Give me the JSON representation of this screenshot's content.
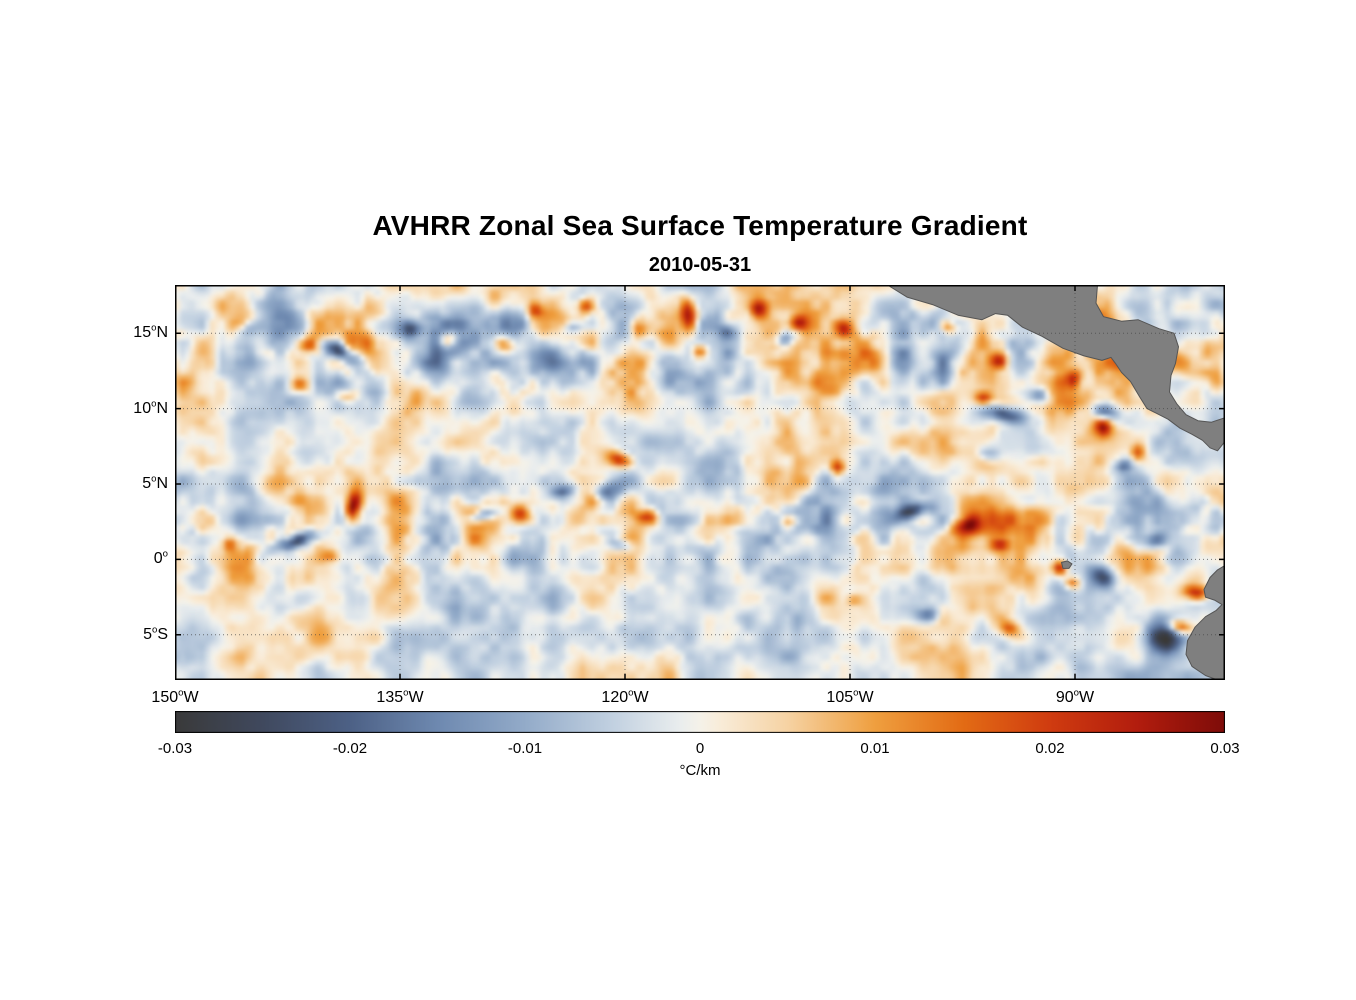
{
  "chart": {
    "title": "AVHRR Zonal Sea Surface Temperature Gradient",
    "subtitle_date": "2010-05-31",
    "colorbar_unit": "°C/km"
  },
  "chart_data": {
    "type": "heatmap",
    "title": "AVHRR Zonal Sea Surface Temperature Gradient",
    "date": "2010-05-31",
    "xlim": [
      -150,
      -80
    ],
    "ylim": [
      -8,
      18.2
    ],
    "lon_ticks": [
      {
        "value": "150",
        "hemi": "W",
        "lon": -150
      },
      {
        "value": "135",
        "hemi": "W",
        "lon": -135
      },
      {
        "value": "120",
        "hemi": "W",
        "lon": -120
      },
      {
        "value": "105",
        "hemi": "W",
        "lon": -105
      },
      {
        "value": "90",
        "hemi": "W",
        "lon": -90
      }
    ],
    "lat_ticks": [
      {
        "value": "15",
        "hemi": "N",
        "lat": 15
      },
      {
        "value": "10",
        "hemi": "N",
        "lat": 10
      },
      {
        "value": "5",
        "hemi": "N",
        "lat": 5
      },
      {
        "value": "0",
        "hemi": "",
        "lat": 0
      },
      {
        "value": "5",
        "hemi": "S",
        "lat": -5
      }
    ],
    "grid": {
      "lons": [
        -135,
        -120,
        -105,
        -90
      ],
      "lats": [
        15,
        10,
        5,
        0,
        -5
      ],
      "style": "dotted"
    },
    "colorbar": {
      "min": -0.03,
      "max": 0.03,
      "tick_labels": [
        "-0.03",
        "-0.02",
        "-0.01",
        "0",
        "0.01",
        "0.02",
        "0.03"
      ],
      "unit": "°C/km",
      "stops": [
        [
          0.0,
          "#3a3a3a"
        ],
        [
          0.083,
          "#40495e"
        ],
        [
          0.167,
          "#4d6186"
        ],
        [
          0.25,
          "#6e89b0"
        ],
        [
          0.333,
          "#93abc9"
        ],
        [
          0.417,
          "#c2d1e1"
        ],
        [
          0.48,
          "#e9edee"
        ],
        [
          0.5,
          "#f5f2e9"
        ],
        [
          0.52,
          "#f9ecd8"
        ],
        [
          0.583,
          "#f6d3a4"
        ],
        [
          0.667,
          "#ef9f3f"
        ],
        [
          0.75,
          "#e36c15"
        ],
        [
          0.833,
          "#d03c10"
        ],
        [
          0.917,
          "#b21d0e"
        ],
        [
          1.0,
          "#7e0c09"
        ]
      ]
    },
    "value_range": [
      -0.033,
      0.033
    ],
    "noise": {
      "seed": 20100531,
      "octaves": [
        {
          "scale": 6.0,
          "amp": 0.004
        },
        {
          "scale": 2.6,
          "amp": 0.007
        },
        {
          "scale": 1.3,
          "amp": 0.0045
        },
        {
          "scale": 0.65,
          "amp": 0.0025
        }
      ],
      "band_boost": [
        {
          "lat": 14.0,
          "sigma": 3.2,
          "gain": 0.9
        },
        {
          "lat": 2.5,
          "sigma": 3.0,
          "gain": 0.7
        }
      ]
    },
    "features_columns": [
      "lon",
      "lat",
      "value",
      "rx_deg",
      "ry_deg",
      "angle_deg"
    ],
    "features": [
      [
        -140.9,
        14.2,
        0.022,
        0.8,
        0.55,
        20
      ],
      [
        -139.0,
        13.8,
        -0.026,
        1.1,
        0.5,
        -25
      ],
      [
        -141.7,
        11.6,
        0.019,
        0.7,
        0.5,
        0
      ],
      [
        -138.6,
        10.8,
        0.016,
        0.8,
        0.45,
        10
      ],
      [
        -145.2,
        15.3,
        -0.013,
        0.7,
        0.5,
        0
      ],
      [
        -134.2,
        15.2,
        -0.022,
        0.7,
        0.6,
        0
      ],
      [
        -131.8,
        14.6,
        0.02,
        0.6,
        0.5,
        0
      ],
      [
        -128.2,
        14.3,
        0.021,
        0.7,
        0.5,
        -20
      ],
      [
        -126.0,
        16.5,
        0.016,
        0.5,
        0.45,
        0
      ],
      [
        -123.5,
        15.3,
        -0.015,
        0.7,
        0.45,
        0
      ],
      [
        -122.6,
        16.8,
        0.018,
        0.5,
        0.45,
        0
      ],
      [
        -119.1,
        15.3,
        0.025,
        0.6,
        0.8,
        0
      ],
      [
        -115.8,
        16.4,
        0.027,
        0.55,
        1.0,
        10
      ],
      [
        -115.0,
        13.8,
        0.021,
        0.5,
        0.5,
        0
      ],
      [
        -113.2,
        15.1,
        -0.018,
        0.6,
        0.5,
        0
      ],
      [
        -111.1,
        16.6,
        0.024,
        0.6,
        0.6,
        0
      ],
      [
        -109.4,
        14.5,
        -0.017,
        0.6,
        0.45,
        0
      ],
      [
        -108.4,
        15.7,
        0.02,
        0.6,
        0.5,
        0
      ],
      [
        -105.4,
        15.3,
        0.016,
        0.5,
        0.5,
        0
      ],
      [
        -98.4,
        15.4,
        0.02,
        0.6,
        0.5,
        -20
      ],
      [
        -95.1,
        13.2,
        0.018,
        0.6,
        0.5,
        0
      ],
      [
        -92.4,
        10.9,
        -0.02,
        0.8,
        0.5,
        0
      ],
      [
        -94.7,
        9.6,
        -0.027,
        1.5,
        0.55,
        -10
      ],
      [
        -96.1,
        10.7,
        0.022,
        0.6,
        0.45,
        0
      ],
      [
        -90.1,
        11.9,
        0.021,
        0.5,
        0.6,
        0
      ],
      [
        -88.0,
        9.8,
        -0.024,
        0.9,
        0.6,
        -15
      ],
      [
        -88.1,
        8.7,
        0.024,
        0.55,
        0.6,
        0
      ],
      [
        -95.7,
        7.0,
        -0.016,
        0.8,
        0.5,
        0
      ],
      [
        -85.8,
        7.1,
        0.02,
        0.5,
        0.5,
        0
      ],
      [
        -86.8,
        6.2,
        -0.018,
        0.6,
        0.45,
        0
      ],
      [
        -141.9,
        1.2,
        -0.025,
        1.7,
        0.45,
        18
      ],
      [
        -138.1,
        3.5,
        0.027,
        1.1,
        0.45,
        78
      ],
      [
        -139.6,
        0.2,
        0.014,
        0.6,
        0.4,
        0
      ],
      [
        -146.4,
        1.0,
        0.012,
        0.5,
        0.4,
        0
      ],
      [
        -129.5,
        2.9,
        -0.021,
        1.2,
        0.4,
        15
      ],
      [
        -127.0,
        3.0,
        0.022,
        0.55,
        0.7,
        60
      ],
      [
        -124.1,
        4.5,
        -0.016,
        0.9,
        0.4,
        15
      ],
      [
        -121.2,
        4.5,
        -0.02,
        0.9,
        0.55,
        20
      ],
      [
        -120.4,
        6.6,
        0.026,
        0.5,
        0.8,
        70
      ],
      [
        -118.4,
        2.8,
        0.018,
        0.45,
        0.9,
        75
      ],
      [
        -120.2,
        0.9,
        -0.014,
        0.7,
        0.4,
        0
      ],
      [
        -109.1,
        2.5,
        0.014,
        0.6,
        0.45,
        0
      ],
      [
        -105.8,
        6.1,
        0.019,
        0.5,
        0.45,
        0
      ],
      [
        -100.8,
        3.2,
        -0.024,
        1.3,
        0.5,
        20
      ],
      [
        -97.2,
        2.3,
        0.028,
        0.95,
        0.6,
        15
      ],
      [
        -95.0,
        1.0,
        0.02,
        0.6,
        0.45,
        0
      ],
      [
        -91.0,
        -0.6,
        0.03,
        0.5,
        0.5,
        0
      ],
      [
        -90.2,
        -1.6,
        0.02,
        0.5,
        0.4,
        0
      ],
      [
        -88.2,
        -1.2,
        -0.022,
        0.8,
        0.6,
        -20
      ],
      [
        -84.6,
        1.2,
        -0.02,
        0.8,
        0.6,
        30
      ],
      [
        -84.2,
        -5.2,
        -0.03,
        1.3,
        1.1,
        0
      ],
      [
        -81.9,
        -2.2,
        0.029,
        0.5,
        0.9,
        80
      ],
      [
        -83.0,
        -4.5,
        0.028,
        0.45,
        0.8,
        75
      ],
      [
        -94.4,
        -4.6,
        0.02,
        0.7,
        0.5,
        0
      ],
      [
        -99.8,
        -3.7,
        -0.017,
        0.8,
        0.5,
        0
      ],
      [
        -104.8,
        -2.7,
        0.012,
        0.6,
        0.4,
        0
      ]
    ],
    "land_color": "#7f7f7f",
    "land_edge_color": "#555555",
    "land": [
      {
        "name": "central-america",
        "pts": [
          [
            -102.5,
            18.2
          ],
          [
            -101.2,
            17.4
          ],
          [
            -99.5,
            16.9
          ],
          [
            -97.8,
            16.2
          ],
          [
            -96.2,
            15.9
          ],
          [
            -95.3,
            16.3
          ],
          [
            -94.5,
            16.2
          ],
          [
            -93.5,
            15.4
          ],
          [
            -92.2,
            14.8
          ],
          [
            -90.8,
            14.0
          ],
          [
            -89.4,
            13.5
          ],
          [
            -88.2,
            13.2
          ],
          [
            -87.6,
            13.4
          ],
          [
            -87.3,
            13.0
          ],
          [
            -86.9,
            12.4
          ],
          [
            -86.3,
            11.8
          ],
          [
            -85.7,
            10.8
          ],
          [
            -85.2,
            10.0
          ],
          [
            -84.6,
            9.7
          ],
          [
            -83.8,
            9.3
          ],
          [
            -83.0,
            8.7
          ],
          [
            -82.2,
            8.3
          ],
          [
            -81.5,
            7.9
          ],
          [
            -81.0,
            7.4
          ],
          [
            -80.5,
            7.2
          ],
          [
            -80.1,
            7.7
          ],
          [
            -80.0,
            7.9
          ],
          [
            -80.0,
            9.4
          ],
          [
            -80.9,
            9.1
          ],
          [
            -81.8,
            9.2
          ],
          [
            -82.6,
            9.6
          ],
          [
            -83.2,
            10.3
          ],
          [
            -83.7,
            11.1
          ],
          [
            -83.6,
            12.2
          ],
          [
            -83.3,
            13.0
          ],
          [
            -83.1,
            14.1
          ],
          [
            -83.4,
            15.0
          ],
          [
            -84.4,
            15.3
          ],
          [
            -85.8,
            15.9
          ],
          [
            -86.9,
            15.8
          ],
          [
            -88.1,
            16.1
          ],
          [
            -88.6,
            17.0
          ],
          [
            -88.5,
            18.2
          ]
        ]
      },
      {
        "name": "south-america",
        "pts": [
          [
            -80.0,
            -0.4
          ],
          [
            -80.5,
            -0.7
          ],
          [
            -81.0,
            -1.2
          ],
          [
            -81.4,
            -2.0
          ],
          [
            -81.3,
            -2.5
          ],
          [
            -80.7,
            -2.7
          ],
          [
            -80.2,
            -3.0
          ],
          [
            -80.6,
            -3.4
          ],
          [
            -81.3,
            -3.8
          ],
          [
            -82.0,
            -4.5
          ],
          [
            -82.5,
            -5.4
          ],
          [
            -82.6,
            -6.3
          ],
          [
            -82.2,
            -7.1
          ],
          [
            -81.3,
            -7.7
          ],
          [
            -80.5,
            -8.0
          ],
          [
            -80.0,
            -8.0
          ]
        ]
      },
      {
        "name": "galapagos-islands",
        "pts": [
          [
            -90.9,
            -0.2
          ],
          [
            -90.5,
            -0.1
          ],
          [
            -90.2,
            -0.3
          ],
          [
            -90.4,
            -0.6
          ],
          [
            -90.8,
            -0.6
          ]
        ]
      }
    ]
  },
  "layout_text": {
    "background": "#ffffff"
  }
}
